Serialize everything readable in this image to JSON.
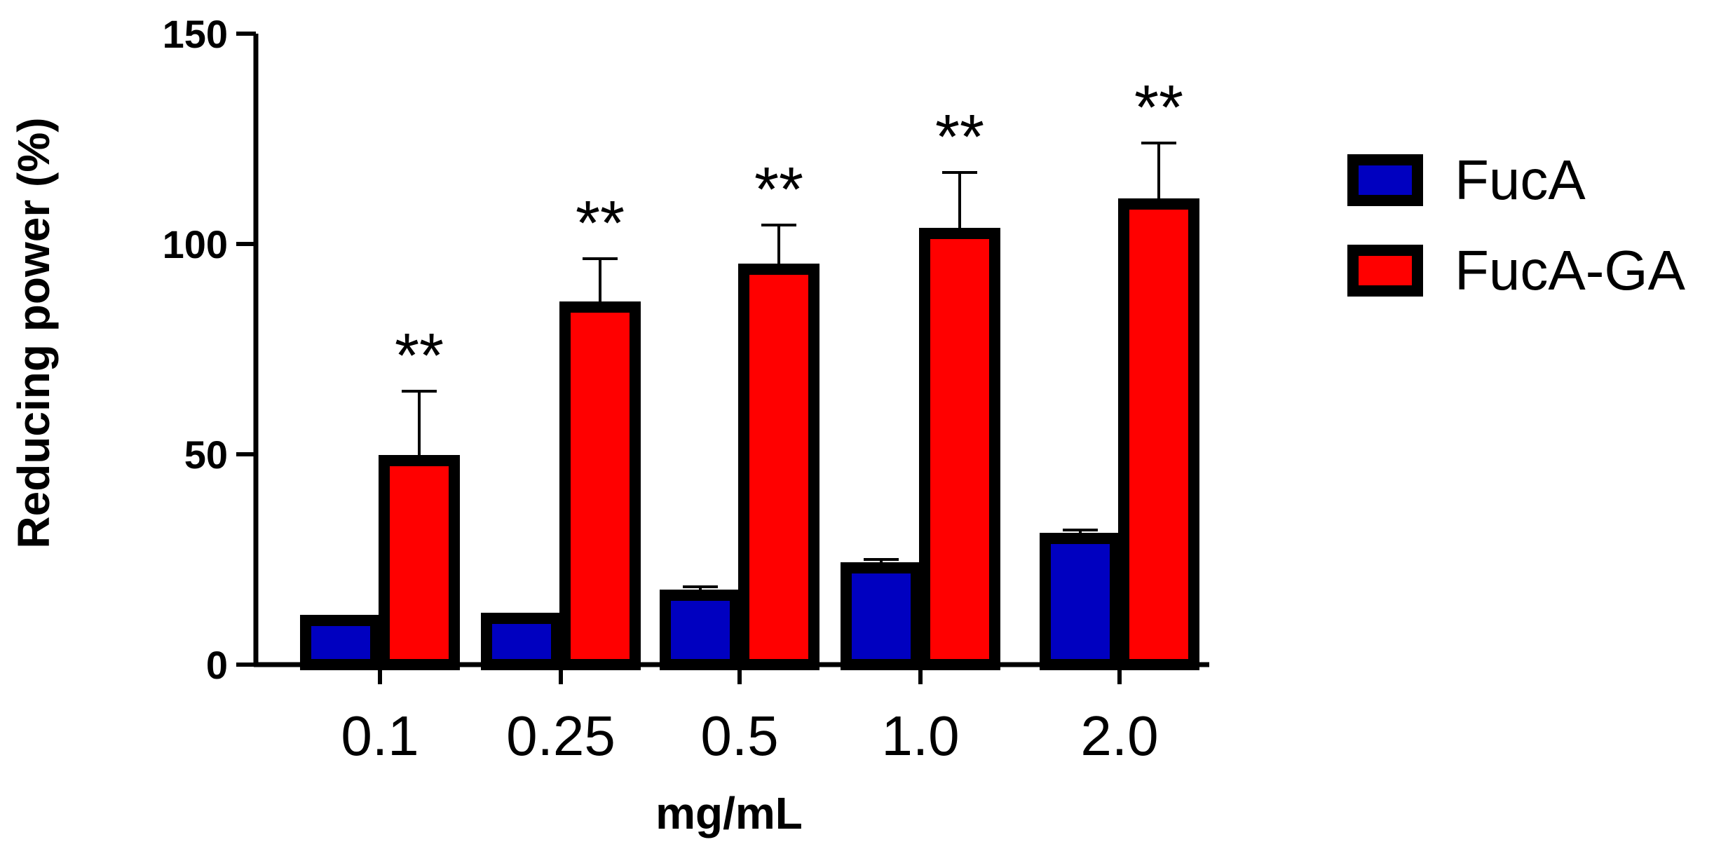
{
  "chart_data": {
    "type": "bar",
    "title": "",
    "xlabel": "mg/mL",
    "ylabel": "Reducing power (%)",
    "ylim": [
      0,
      150
    ],
    "yticks": [
      0,
      50,
      100,
      150
    ],
    "categories": [
      "0.1",
      "0.25",
      "0.5",
      "1.0",
      "2.0"
    ],
    "series": [
      {
        "name": "FucA",
        "color": "#0000c0",
        "values": [
          10.5,
          11,
          16.5,
          23,
          30
        ],
        "errors": [
          1,
          1,
          2,
          2,
          2
        ]
      },
      {
        "name": "FucA-GA",
        "color": "#ff0000",
        "values": [
          48.5,
          85,
          94,
          102.5,
          109.5
        ],
        "errors": [
          16.5,
          11.5,
          10.5,
          14.5,
          14.5
        ]
      }
    ],
    "annotations": [
      "**",
      "**",
      "**",
      "**",
      "**"
    ],
    "legend_position": "right",
    "grid": false
  }
}
